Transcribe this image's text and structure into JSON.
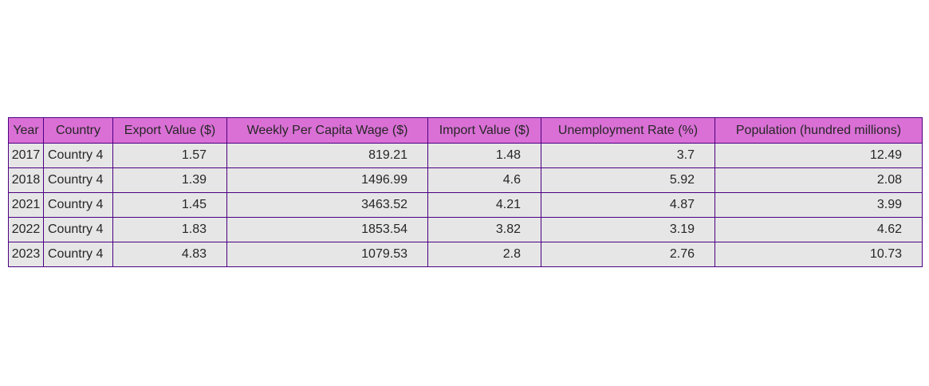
{
  "chart_data": {
    "type": "table",
    "columns": [
      "Year",
      "Country",
      "Export Value ($)",
      "Weekly Per Capita Wage ($)",
      "Import Value ($)",
      "Unemployment Rate (%)",
      "Population (hundred millions)"
    ],
    "rows": [
      [
        "2017",
        "Country 4",
        "1.57",
        "819.21",
        "1.48",
        "3.7",
        "12.49"
      ],
      [
        "2018",
        "Country 4",
        "1.39",
        "1496.99",
        "4.6",
        "5.92",
        "2.08"
      ],
      [
        "2021",
        "Country 4",
        "1.45",
        "3463.52",
        "4.21",
        "4.87",
        "3.99"
      ],
      [
        "2022",
        "Country 4",
        "1.83",
        "1853.54",
        "3.82",
        "3.19",
        "4.62"
      ],
      [
        "2023",
        "Country 4",
        "4.83",
        "1079.53",
        "2.8",
        "2.76",
        "10.73"
      ]
    ],
    "colors": {
      "header_background": "#da70d6",
      "cell_background": "#e6e6e6",
      "border": "#4b0082"
    }
  }
}
